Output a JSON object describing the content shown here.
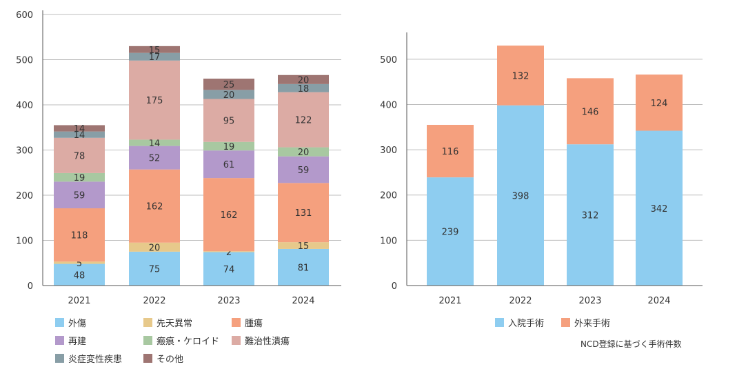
{
  "chart_data": [
    {
      "type": "bar",
      "stacked": true,
      "categories": [
        "2021",
        "2022",
        "2023",
        "2024"
      ],
      "ylim": [
        0,
        600
      ],
      "yticks": [
        "0",
        "100",
        "200",
        "300",
        "400",
        "500",
        "600"
      ],
      "grid": true,
      "legend_position": "bottom",
      "series": [
        {
          "name": "外傷",
          "color": "#8ecdf0",
          "values": [
            48,
            75,
            74,
            81
          ]
        },
        {
          "name": "先天異常",
          "color": "#e7c98b",
          "values": [
            5,
            20,
            2,
            15
          ]
        },
        {
          "name": "腫瘍",
          "color": "#f5a07e",
          "values": [
            118,
            162,
            162,
            131
          ]
        },
        {
          "name": "再建",
          "color": "#b399cb",
          "values": [
            59,
            52,
            61,
            59
          ]
        },
        {
          "name": "瘢痕・ケロイド",
          "color": "#a8c8a1",
          "values": [
            19,
            14,
            19,
            20
          ]
        },
        {
          "name": "難治性潰瘍",
          "color": "#dcaba4",
          "values": [
            78,
            175,
            95,
            122
          ]
        },
        {
          "name": "炎症変性疾患",
          "color": "#889ea6",
          "values": [
            14,
            17,
            20,
            18
          ]
        },
        {
          "name": "その他",
          "color": "#9e7572",
          "values": [
            14,
            15,
            25,
            20
          ]
        }
      ]
    },
    {
      "type": "bar",
      "stacked": true,
      "categories": [
        "2021",
        "2022",
        "2023",
        "2024"
      ],
      "ylim": [
        0,
        550
      ],
      "yticks": [
        "0",
        "100",
        "200",
        "300",
        "400",
        "500"
      ],
      "grid": true,
      "legend_position": "bottom",
      "series": [
        {
          "name": "入院手術",
          "color": "#8ecdf0",
          "values": [
            239,
            398,
            312,
            342
          ]
        },
        {
          "name": "外来手術",
          "color": "#f5a07e",
          "values": [
            116,
            132,
            146,
            124
          ]
        }
      ]
    }
  ],
  "footnote": "NCD登録に基づく手術件数"
}
